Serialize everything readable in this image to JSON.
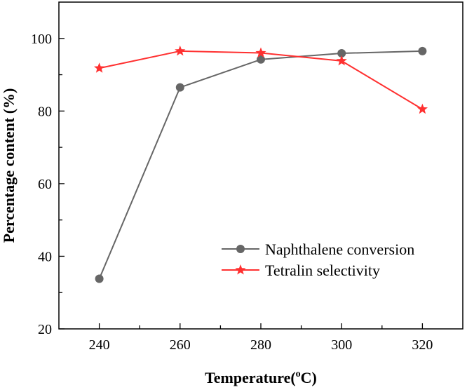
{
  "chart_data": {
    "type": "line",
    "title": "",
    "xlabel": "Temperature(",
    "xlabel_sup": "o",
    "xlabel_tail": "C)",
    "ylabel": "Percentage content (%)",
    "x": [
      240,
      260,
      280,
      300,
      320
    ],
    "xlim": [
      230,
      330
    ],
    "ylim": [
      20,
      110
    ],
    "xticks": [
      "240",
      "260",
      "280",
      "300",
      "320"
    ],
    "yticks": [
      "20",
      "40",
      "60",
      "80",
      "100"
    ],
    "legend_position": "lower-right",
    "series": [
      {
        "name": "Naphthalene conversion",
        "color": "#666666",
        "marker": "circle",
        "values": [
          33.8,
          86.5,
          94.2,
          95.9,
          96.5
        ]
      },
      {
        "name": "Tetralin selectivity",
        "color": "#ff3030",
        "marker": "star",
        "values": [
          91.8,
          96.5,
          96.0,
          93.8,
          80.5
        ]
      }
    ]
  }
}
